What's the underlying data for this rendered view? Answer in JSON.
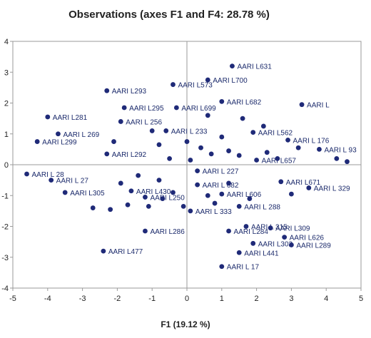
{
  "chart_data": {
    "type": "scatter",
    "title": "Observations (axes F1 and F4: 28.78 %)",
    "xlabel": "F1 (19.12 %)",
    "ylabel": "",
    "xlim": [
      -5,
      5
    ],
    "ylim": [
      -4,
      4
    ],
    "x_ticks": [
      "-5",
      "-4",
      "-3",
      "-2",
      "-1",
      "0",
      "1",
      "2",
      "3",
      "4",
      "5"
    ],
    "y_ticks": [
      "4",
      "3",
      "2",
      "1",
      "0",
      "-1",
      "-2",
      "-3",
      "-4"
    ],
    "grid": false,
    "point_color": "#1f2a78",
    "points": [
      {
        "x": 1.3,
        "y": 3.2,
        "label": "AARI L631"
      },
      {
        "x": 0.6,
        "y": 2.75,
        "label": "AARI L700"
      },
      {
        "x": -0.4,
        "y": 2.6,
        "label": "AARI L573"
      },
      {
        "x": -2.3,
        "y": 2.4,
        "label": "AARI L293"
      },
      {
        "x": -0.3,
        "y": 1.85,
        "label": "AARI L699"
      },
      {
        "x": -1.8,
        "y": 1.85,
        "label": "AARI L295"
      },
      {
        "x": 1.0,
        "y": 2.05,
        "label": "AARI L682"
      },
      {
        "x": 3.3,
        "y": 1.95,
        "label": "AARI L"
      },
      {
        "x": -4.0,
        "y": 1.55,
        "label": "AARI L281"
      },
      {
        "x": -1.9,
        "y": 1.4,
        "label": "AARI L 256"
      },
      {
        "x": -3.7,
        "y": 1.0,
        "label": "AARI L 269"
      },
      {
        "x": -4.3,
        "y": 0.75,
        "label": "AARI L299"
      },
      {
        "x": -2.3,
        "y": 0.35,
        "label": "AARI L292"
      },
      {
        "x": -0.6,
        "y": 1.1,
        "label": "AARI L 233"
      },
      {
        "x": 1.9,
        "y": 1.05,
        "label": "AARI L562"
      },
      {
        "x": 2.9,
        "y": 0.8,
        "label": "AARI L 176"
      },
      {
        "x": 3.8,
        "y": 0.5,
        "label": "AARI L 93"
      },
      {
        "x": 2.0,
        "y": 0.15,
        "label": "AARI L657"
      },
      {
        "x": -4.6,
        "y": -0.3,
        "label": "AARI L 28"
      },
      {
        "x": -3.9,
        "y": -0.5,
        "label": "AARI L 27"
      },
      {
        "x": -3.5,
        "y": -0.9,
        "label": "AARI L305"
      },
      {
        "x": -1.6,
        "y": -0.85,
        "label": "AARI L430"
      },
      {
        "x": -1.2,
        "y": -1.05,
        "label": "AARI L250"
      },
      {
        "x": 0.3,
        "y": -0.2,
        "label": "AARI L 227"
      },
      {
        "x": 0.3,
        "y": -0.65,
        "label": "AARI L 682"
      },
      {
        "x": 1.0,
        "y": -0.95,
        "label": "AARI L606"
      },
      {
        "x": 1.5,
        "y": -1.35,
        "label": "AARI L 288"
      },
      {
        "x": 0.1,
        "y": -1.5,
        "label": "AARI L 333"
      },
      {
        "x": 2.7,
        "y": -0.55,
        "label": "AARI L671"
      },
      {
        "x": 3.5,
        "y": -0.75,
        "label": "AARI L 329"
      },
      {
        "x": 1.7,
        "y": -2.0,
        "label": "AARI L 315"
      },
      {
        "x": 2.4,
        "y": -2.05,
        "label": "AARI L309"
      },
      {
        "x": -1.2,
        "y": -2.15,
        "label": "AARI L286"
      },
      {
        "x": 1.2,
        "y": -2.15,
        "label": "AARI L284"
      },
      {
        "x": 1.9,
        "y": -2.55,
        "label": "AARI L302"
      },
      {
        "x": 2.8,
        "y": -2.35,
        "label": "AARI L626"
      },
      {
        "x": 3.0,
        "y": -2.6,
        "label": "AARI L289"
      },
      {
        "x": 1.5,
        "y": -2.85,
        "label": "AARI L441"
      },
      {
        "x": -2.4,
        "y": -2.8,
        "label": "AARI L477"
      },
      {
        "x": 1.0,
        "y": -3.3,
        "label": "AARI L 17"
      },
      {
        "x": -2.1,
        "y": 0.75,
        "label": ""
      },
      {
        "x": -1.0,
        "y": 1.1,
        "label": ""
      },
      {
        "x": -0.8,
        "y": 0.65,
        "label": ""
      },
      {
        "x": 0.0,
        "y": 0.75,
        "label": ""
      },
      {
        "x": 0.4,
        "y": 0.55,
        "label": ""
      },
      {
        "x": 0.7,
        "y": 0.35,
        "label": ""
      },
      {
        "x": 1.0,
        "y": 0.9,
        "label": ""
      },
      {
        "x": 1.2,
        "y": 0.45,
        "label": ""
      },
      {
        "x": 1.5,
        "y": 0.3,
        "label": ""
      },
      {
        "x": 2.3,
        "y": 0.4,
        "label": ""
      },
      {
        "x": 2.6,
        "y": 0.2,
        "label": ""
      },
      {
        "x": 3.2,
        "y": 0.55,
        "label": ""
      },
      {
        "x": 4.3,
        "y": 0.2,
        "label": ""
      },
      {
        "x": 4.6,
        "y": 0.1,
        "label": ""
      },
      {
        "x": -0.5,
        "y": 0.2,
        "label": ""
      },
      {
        "x": 0.1,
        "y": 0.15,
        "label": ""
      },
      {
        "x": 0.6,
        "y": 1.6,
        "label": ""
      },
      {
        "x": 1.6,
        "y": 1.5,
        "label": ""
      },
      {
        "x": 2.2,
        "y": 1.25,
        "label": ""
      },
      {
        "x": -1.4,
        "y": -0.35,
        "label": ""
      },
      {
        "x": -0.8,
        "y": -0.5,
        "label": ""
      },
      {
        "x": -1.9,
        "y": -0.6,
        "label": ""
      },
      {
        "x": -2.7,
        "y": -1.4,
        "label": ""
      },
      {
        "x": -2.2,
        "y": -1.45,
        "label": ""
      },
      {
        "x": -1.7,
        "y": -1.3,
        "label": ""
      },
      {
        "x": -1.1,
        "y": -1.35,
        "label": ""
      },
      {
        "x": -0.4,
        "y": -0.9,
        "label": ""
      },
      {
        "x": -0.1,
        "y": -1.35,
        "label": ""
      },
      {
        "x": 0.6,
        "y": -1.0,
        "label": ""
      },
      {
        "x": 1.2,
        "y": -0.6,
        "label": ""
      },
      {
        "x": 1.8,
        "y": -1.1,
        "label": ""
      },
      {
        "x": 3.0,
        "y": -0.95,
        "label": ""
      },
      {
        "x": 0.8,
        "y": -1.25,
        "label": ""
      },
      {
        "x": -0.7,
        "y": -1.1,
        "label": ""
      }
    ]
  }
}
